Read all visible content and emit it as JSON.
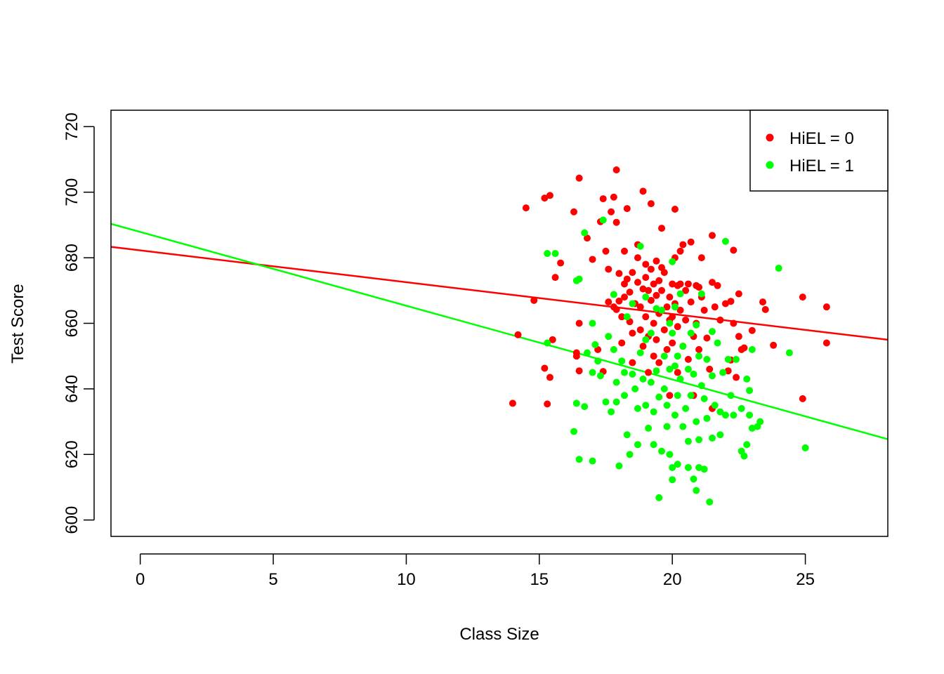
{
  "chart_data": {
    "type": "scatter",
    "title": "",
    "xlabel": "Class Size",
    "ylabel": "Test Score",
    "xlim": [
      -1.1,
      28.1
    ],
    "ylim": [
      595,
      725
    ],
    "xticks": [
      0,
      5,
      10,
      15,
      20,
      25
    ],
    "yticks": [
      600,
      620,
      640,
      660,
      680,
      700,
      720
    ],
    "grid": false,
    "legend_position": "top-right",
    "colors": {
      "hiel0": "#ff0000",
      "hiel1": "#00ff00"
    },
    "series": [
      {
        "name": "HiEL = 0",
        "color": "#ff0000",
        "fit_line": {
          "intercept": 682.24,
          "slope": -0.97
        },
        "points": [
          [
            14.0,
            635.6
          ],
          [
            14.2,
            656.5
          ],
          [
            14.5,
            695.2
          ],
          [
            14.8,
            667.0
          ],
          [
            15.2,
            698.2
          ],
          [
            15.4,
            699.0
          ],
          [
            15.5,
            655.0
          ],
          [
            15.4,
            643.5
          ],
          [
            15.2,
            646.3
          ],
          [
            15.3,
            635.4
          ],
          [
            15.6,
            674.0
          ],
          [
            15.8,
            678.4
          ],
          [
            16.3,
            694.0
          ],
          [
            16.5,
            704.3
          ],
          [
            16.5,
            660.0
          ],
          [
            16.4,
            651.0
          ],
          [
            16.5,
            645.5
          ],
          [
            16.4,
            650.0
          ],
          [
            16.8,
            686.0
          ],
          [
            17.0,
            679.5
          ],
          [
            17.2,
            652.0
          ],
          [
            17.3,
            691.0
          ],
          [
            17.4,
            698.0
          ],
          [
            17.4,
            645.3
          ],
          [
            17.5,
            682.0
          ],
          [
            17.6,
            666.5
          ],
          [
            17.6,
            676.5
          ],
          [
            17.7,
            694.0
          ],
          [
            17.8,
            698.5
          ],
          [
            17.9,
            706.8
          ],
          [
            17.9,
            690.8
          ],
          [
            17.8,
            665.0
          ],
          [
            17.9,
            664.2
          ],
          [
            18.0,
            666.8
          ],
          [
            18.0,
            675.2
          ],
          [
            18.1,
            662.0
          ],
          [
            18.1,
            654.0
          ],
          [
            18.2,
            682.0
          ],
          [
            18.2,
            672.0
          ],
          [
            18.2,
            668.0
          ],
          [
            18.3,
            695.0
          ],
          [
            18.3,
            673.5
          ],
          [
            18.4,
            669.5
          ],
          [
            18.4,
            660.5
          ],
          [
            18.5,
            657.0
          ],
          [
            18.5,
            675.5
          ],
          [
            18.5,
            648.0
          ],
          [
            18.6,
            666.0
          ],
          [
            18.7,
            684.0
          ],
          [
            18.7,
            680.0
          ],
          [
            18.7,
            672.5
          ],
          [
            18.8,
            665.0
          ],
          [
            18.8,
            658.0
          ],
          [
            18.9,
            700.3
          ],
          [
            18.9,
            670.5
          ],
          [
            18.9,
            653.0
          ],
          [
            19.0,
            678.0
          ],
          [
            19.0,
            674.0
          ],
          [
            19.0,
            662.0
          ],
          [
            19.1,
            670.0
          ],
          [
            19.1,
            656.0
          ],
          [
            19.1,
            645.0
          ],
          [
            19.2,
            696.5
          ],
          [
            19.2,
            676.5
          ],
          [
            19.2,
            667.0
          ],
          [
            19.3,
            672.0
          ],
          [
            19.3,
            660.0
          ],
          [
            19.3,
            650.0
          ],
          [
            19.4,
            679.0
          ],
          [
            19.4,
            668.5
          ],
          [
            19.4,
            655.0
          ],
          [
            19.5,
            673.0
          ],
          [
            19.5,
            663.0
          ],
          [
            19.5,
            648.0
          ],
          [
            19.6,
            689.0
          ],
          [
            19.6,
            677.0
          ],
          [
            19.6,
            670.0
          ],
          [
            19.7,
            675.5
          ],
          [
            19.7,
            658.0
          ],
          [
            19.8,
            665.0
          ],
          [
            19.8,
            652.0
          ],
          [
            19.9,
            668.0
          ],
          [
            19.9,
            661.0
          ],
          [
            19.9,
            638.0
          ],
          [
            20.0,
            672.0
          ],
          [
            20.0,
            662.0
          ],
          [
            20.0,
            654.0
          ],
          [
            20.1,
            694.8
          ],
          [
            20.1,
            680.0
          ],
          [
            20.1,
            666.0
          ],
          [
            20.2,
            671.5
          ],
          [
            20.2,
            659.0
          ],
          [
            20.2,
            645.0
          ],
          [
            20.3,
            682.0
          ],
          [
            20.3,
            672.0
          ],
          [
            20.3,
            664.0
          ],
          [
            20.4,
            684.0
          ],
          [
            20.4,
            653.0
          ],
          [
            20.5,
            670.0
          ],
          [
            20.5,
            661.0
          ],
          [
            20.6,
            672.0
          ],
          [
            20.6,
            649.0
          ],
          [
            20.7,
            684.8
          ],
          [
            20.7,
            666.5
          ],
          [
            20.8,
            656.0
          ],
          [
            20.8,
            638.0
          ],
          [
            20.9,
            671.5
          ],
          [
            20.9,
            660.0
          ],
          [
            21.0,
            671.0
          ],
          [
            21.0,
            652.0
          ],
          [
            21.1,
            680.0
          ],
          [
            21.1,
            668.0
          ],
          [
            21.2,
            664.0
          ],
          [
            21.3,
            655.5
          ],
          [
            21.4,
            646.0
          ],
          [
            21.5,
            686.8
          ],
          [
            21.5,
            672.5
          ],
          [
            21.5,
            634.0
          ],
          [
            21.6,
            665.0
          ],
          [
            21.7,
            671.5
          ],
          [
            21.8,
            661.0
          ],
          [
            22.0,
            666.0
          ],
          [
            22.1,
            645.5
          ],
          [
            22.2,
            666.7
          ],
          [
            22.2,
            648.8
          ],
          [
            22.3,
            682.3
          ],
          [
            22.3,
            660.0
          ],
          [
            22.4,
            643.5
          ],
          [
            22.5,
            669.0
          ],
          [
            22.5,
            656.0
          ],
          [
            22.6,
            652.0
          ],
          [
            22.7,
            652.5
          ],
          [
            23.0,
            657.8
          ],
          [
            23.4,
            666.5
          ],
          [
            23.5,
            664.2
          ],
          [
            23.8,
            653.3
          ],
          [
            24.9,
            668.0
          ],
          [
            24.9,
            637.0
          ],
          [
            25.8,
            665.0
          ],
          [
            25.8,
            654.0
          ]
        ]
      },
      {
        "name": "HiEL = 1",
        "color": "#00ff00",
        "fit_line": {
          "intercept": 687.87,
          "slope": -2.25
        },
        "points": [
          [
            15.3,
            681.3
          ],
          [
            15.6,
            681.3
          ],
          [
            15.3,
            654.0
          ],
          [
            16.3,
            627.0
          ],
          [
            16.4,
            673.0
          ],
          [
            16.4,
            635.6
          ],
          [
            16.5,
            673.5
          ],
          [
            16.5,
            618.5
          ],
          [
            16.7,
            687.6
          ],
          [
            16.7,
            634.6
          ],
          [
            16.8,
            651.0
          ],
          [
            17.0,
            660.0
          ],
          [
            17.0,
            645.0
          ],
          [
            17.0,
            618.0
          ],
          [
            17.1,
            653.5
          ],
          [
            17.2,
            648.5
          ],
          [
            17.3,
            644.0
          ],
          [
            17.4,
            691.5
          ],
          [
            17.5,
            636.0
          ],
          [
            17.6,
            656.0
          ],
          [
            17.7,
            633.0
          ],
          [
            17.8,
            668.8
          ],
          [
            17.8,
            652.0
          ],
          [
            17.9,
            642.0
          ],
          [
            17.9,
            636.0
          ],
          [
            18.0,
            616.5
          ],
          [
            18.1,
            648.5
          ],
          [
            18.2,
            645.0
          ],
          [
            18.2,
            638.0
          ],
          [
            18.3,
            662.0
          ],
          [
            18.3,
            626.0
          ],
          [
            18.4,
            620.0
          ],
          [
            18.5,
            666.0
          ],
          [
            18.5,
            644.5
          ],
          [
            18.6,
            640.0
          ],
          [
            18.7,
            634.0
          ],
          [
            18.7,
            623.0
          ],
          [
            18.8,
            683.5
          ],
          [
            18.8,
            651.0
          ],
          [
            18.9,
            643.0
          ],
          [
            19.0,
            668.0
          ],
          [
            19.0,
            655.0
          ],
          [
            19.0,
            635.0
          ],
          [
            19.1,
            628.0
          ],
          [
            19.2,
            657.0
          ],
          [
            19.2,
            642.0
          ],
          [
            19.3,
            633.0
          ],
          [
            19.3,
            623.0
          ],
          [
            19.4,
            664.5
          ],
          [
            19.4,
            645.5
          ],
          [
            19.5,
            637.5
          ],
          [
            19.5,
            606.8
          ],
          [
            19.6,
            664.0
          ],
          [
            19.6,
            621.0
          ],
          [
            19.7,
            650.0
          ],
          [
            19.7,
            640.0
          ],
          [
            19.8,
            628.5
          ],
          [
            19.8,
            635.0
          ],
          [
            19.9,
            660.0
          ],
          [
            19.9,
            646.0
          ],
          [
            19.9,
            620.0
          ],
          [
            20.0,
            678.8
          ],
          [
            20.0,
            657.0
          ],
          [
            20.0,
            616.0
          ],
          [
            20.0,
            612.3
          ],
          [
            20.1,
            665.0
          ],
          [
            20.1,
            647.0
          ],
          [
            20.1,
            632.0
          ],
          [
            20.2,
            650.0
          ],
          [
            20.2,
            638.0
          ],
          [
            20.2,
            617.0
          ],
          [
            20.3,
            669.0
          ],
          [
            20.3,
            643.0
          ],
          [
            20.4,
            653.0
          ],
          [
            20.4,
            628.5
          ],
          [
            20.5,
            634.0
          ],
          [
            20.6,
            646.0
          ],
          [
            20.6,
            624.0
          ],
          [
            20.6,
            616.0
          ],
          [
            20.7,
            657.0
          ],
          [
            20.7,
            638.0
          ],
          [
            20.8,
            612.5
          ],
          [
            20.8,
            644.5
          ],
          [
            20.9,
            659.5
          ],
          [
            20.9,
            630.0
          ],
          [
            20.9,
            609.0
          ],
          [
            21.0,
            650.0
          ],
          [
            21.0,
            624.5
          ],
          [
            21.0,
            616.0
          ],
          [
            21.1,
            669.0
          ],
          [
            21.1,
            641.0
          ],
          [
            21.2,
            637.0
          ],
          [
            21.2,
            615.5
          ],
          [
            21.3,
            649.0
          ],
          [
            21.3,
            631.0
          ],
          [
            21.4,
            605.5
          ],
          [
            21.5,
            657.5
          ],
          [
            21.5,
            644.0
          ],
          [
            21.5,
            625.0
          ],
          [
            21.6,
            635.0
          ],
          [
            21.7,
            654.0
          ],
          [
            21.8,
            633.0
          ],
          [
            21.8,
            626.0
          ],
          [
            21.9,
            645.0
          ],
          [
            22.0,
            685.0
          ],
          [
            22.0,
            632.0
          ],
          [
            22.1,
            649.0
          ],
          [
            22.2,
            638.0
          ],
          [
            22.3,
            632.0
          ],
          [
            22.4,
            649.0
          ],
          [
            22.6,
            634.0
          ],
          [
            22.6,
            621.0
          ],
          [
            22.7,
            619.5
          ],
          [
            22.8,
            643.0
          ],
          [
            22.8,
            623.0
          ],
          [
            22.9,
            639.5
          ],
          [
            22.9,
            632.0
          ],
          [
            23.0,
            628.0
          ],
          [
            23.0,
            652.0
          ],
          [
            23.2,
            628.5
          ],
          [
            23.3,
            630.0
          ],
          [
            24.0,
            676.8
          ],
          [
            24.4,
            651.0
          ],
          [
            25.0,
            622.0
          ]
        ]
      }
    ]
  }
}
